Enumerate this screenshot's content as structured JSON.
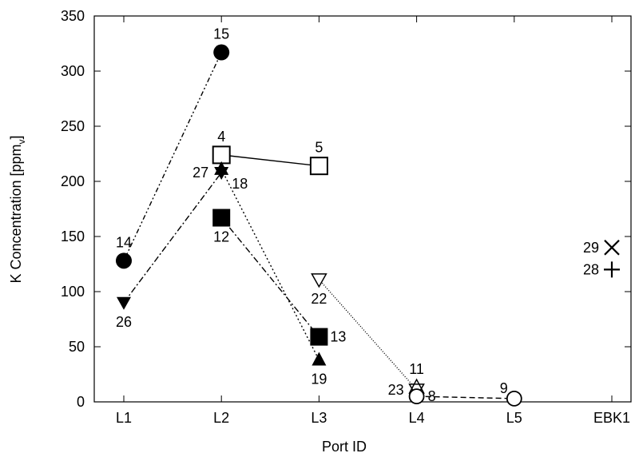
{
  "chart_data": {
    "type": "scatter",
    "xlabel": "Port ID",
    "ylabel_main": "K Concentration [ppm",
    "ylabel_sub": "v",
    "ylabel_close": "]",
    "categories": [
      "L1",
      "L2",
      "L3",
      "L4",
      "L5",
      "EBK1"
    ],
    "ylim": [
      0,
      350
    ],
    "yticks": [
      0,
      50,
      100,
      150,
      200,
      250,
      300,
      350
    ],
    "grid": false,
    "series": [
      {
        "marker": "filled-circle",
        "line": "dash-dot-dot",
        "points": [
          {
            "x": "L1",
            "y": 128,
            "label": "14",
            "label_pos": "above"
          },
          {
            "x": "L2",
            "y": 317,
            "label": "15",
            "label_pos": "above"
          }
        ]
      },
      {
        "marker": "open-square",
        "line": "solid",
        "points": [
          {
            "x": "L2",
            "y": 224,
            "label": "4",
            "label_pos": "above"
          },
          {
            "x": "L3",
            "y": 214,
            "label": "5",
            "label_pos": "above"
          }
        ]
      },
      {
        "marker": "filled-down-triangle",
        "line": "dash-dot",
        "points": [
          {
            "x": "L1",
            "y": 90,
            "label": "26",
            "label_pos": "below"
          },
          {
            "x": "L2",
            "y": 208,
            "label": "27",
            "label_pos": "left"
          }
        ]
      },
      {
        "marker": "filled-up-triangle",
        "line": "dotted",
        "points": [
          {
            "x": "L2",
            "y": 211,
            "label": "18",
            "label_pos": "right-below"
          },
          {
            "x": "L3",
            "y": 38,
            "label": "19",
            "label_pos": "below"
          }
        ]
      },
      {
        "marker": "filled-square",
        "line": "dash-dot",
        "points": [
          {
            "x": "L2",
            "y": 167,
            "label": "12",
            "label_pos": "below"
          },
          {
            "x": "L3",
            "y": 59,
            "label": "13",
            "label_pos": "right"
          }
        ]
      },
      {
        "marker": "open-down-triangle",
        "line": "fine-dotted",
        "points": [
          {
            "x": "L3",
            "y": 111,
            "label": "22",
            "label_pos": "below"
          },
          {
            "x": "L4",
            "y": 11,
            "label": "23",
            "label_pos": "left"
          }
        ]
      },
      {
        "marker": "open-up-triangle",
        "line": "none",
        "points": [
          {
            "x": "L4",
            "y": 13,
            "label": "11",
            "label_pos": "above"
          }
        ]
      },
      {
        "marker": "open-circle",
        "line": "dashed",
        "points": [
          {
            "x": "L4",
            "y": 5,
            "label": "8",
            "label_pos": "right"
          },
          {
            "x": "L5",
            "y": 3,
            "label": "9",
            "label_pos": "above-left"
          }
        ]
      },
      {
        "marker": "cross",
        "line": "none",
        "points": [
          {
            "x": "EBK1",
            "y": 140,
            "label": "29",
            "label_pos": "left"
          }
        ]
      },
      {
        "marker": "plus",
        "line": "none",
        "points": [
          {
            "x": "EBK1",
            "y": 120,
            "label": "28",
            "label_pos": "left"
          }
        ]
      }
    ]
  }
}
